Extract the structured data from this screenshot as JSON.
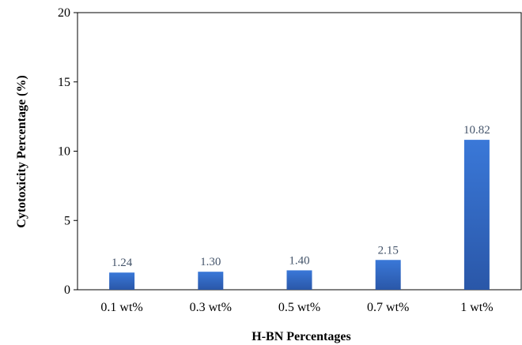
{
  "chart_data": {
    "type": "bar",
    "title": "",
    "xlabel": "H-BN Percentages",
    "ylabel": "Cytotoxicity  Percentage (%)",
    "categories": [
      "0.1 wt%",
      "0.3 wt%",
      "0.5 wt%",
      "0.7 wt%",
      "1 wt%"
    ],
    "values": [
      1.24,
      1.3,
      1.4,
      2.15,
      10.82
    ],
    "data_labels": [
      "1.24",
      "1.30",
      "1.40",
      "2.15",
      "10.82"
    ],
    "ylim": [
      0,
      20
    ],
    "yticks": [
      "0",
      "5",
      "10",
      "15",
      "20"
    ],
    "grid": false,
    "legend": "none",
    "bar_color_top": "#3a78d8",
    "bar_color_bottom": "#2a57a8",
    "label_color": "#44546a"
  }
}
